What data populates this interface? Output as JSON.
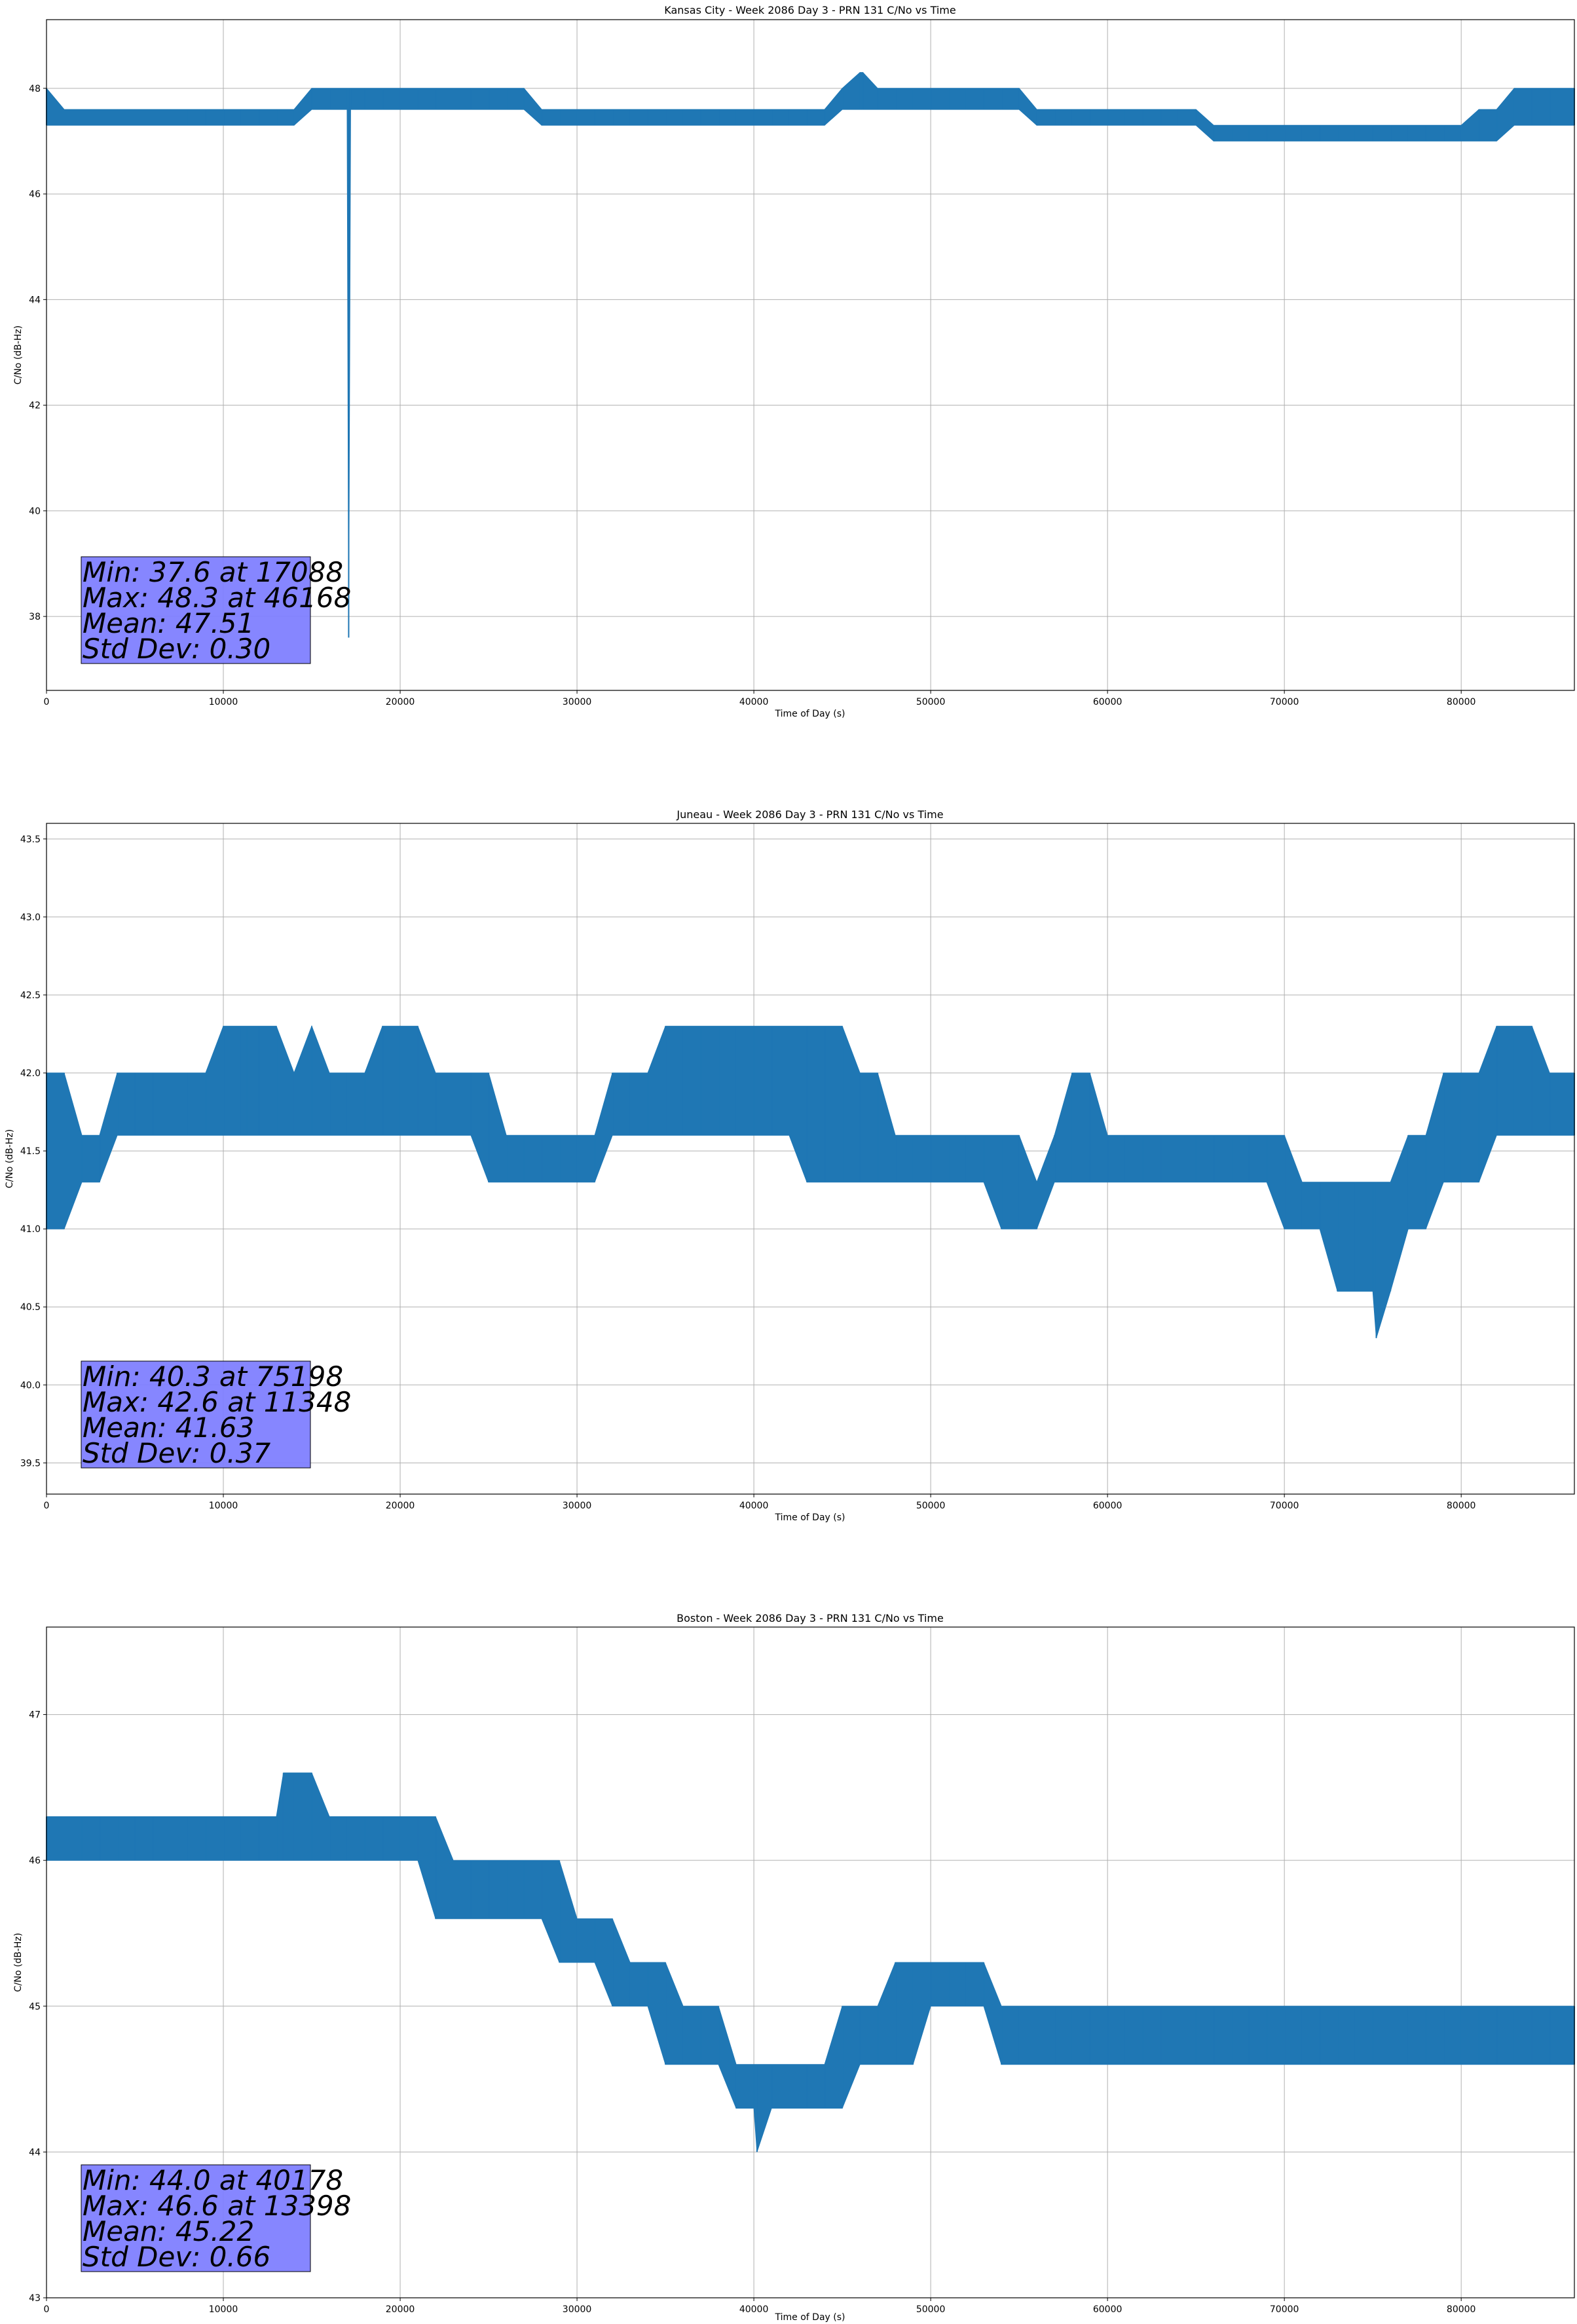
{
  "chart_data": [
    {
      "type": "line",
      "title": "Kansas City - Week 2086 Day 3 - PRN 131 C/No vs Time",
      "xlabel": "Time of Day (s)",
      "ylabel": "C/No (dB-Hz)",
      "xlim": [
        0,
        86400
      ],
      "ylim": [
        36.6,
        49.3
      ],
      "xticks": [
        0,
        10000,
        20000,
        30000,
        40000,
        50000,
        60000,
        70000,
        80000
      ],
      "xtick_labels": [
        "0",
        "10000",
        "20000",
        "30000",
        "40000",
        "50000",
        "60000",
        "70000",
        "80000"
      ],
      "yticks": [
        38,
        40,
        42,
        44,
        46,
        48
      ],
      "ytick_labels": [
        "38",
        "40",
        "42",
        "44",
        "46",
        "48"
      ],
      "grid": true,
      "line_color": "#1f77b4",
      "stats_box_color": "#8080ff",
      "stats": [
        "Min: 37.6 at 17088",
        "Max: 48.3 at 46168",
        "Mean: 47.51",
        "Std Dev: 0.30"
      ],
      "series": [
        {
          "x": [
            0,
            1000,
            2000,
            3000,
            4000,
            5000,
            6000,
            7000,
            8000,
            9000,
            10000,
            11000,
            12000,
            13000,
            14000,
            15000,
            16000,
            17000,
            17088,
            17200,
            18000,
            19000,
            20000,
            21000,
            22000,
            23000,
            24000,
            25000,
            26000,
            27000,
            28000,
            29000,
            30000,
            31000,
            32000,
            33000,
            34000,
            35000,
            36000,
            37000,
            38000,
            39000,
            40000,
            41000,
            42000,
            43000,
            44000,
            45000,
            46000,
            46168,
            47000,
            48000,
            49000,
            50000,
            51000,
            52000,
            53000,
            54000,
            55000,
            56000,
            57000,
            58000,
            59000,
            60000,
            61000,
            62000,
            63000,
            64000,
            65000,
            66000,
            67000,
            68000,
            69000,
            70000,
            71000,
            72000,
            73000,
            74000,
            75000,
            76000,
            77000,
            78000,
            79000,
            80000,
            81000,
            82000,
            83000,
            84000,
            85000,
            86400
          ],
          "low": [
            47.3,
            47.3,
            47.3,
            47.3,
            47.3,
            47.3,
            47.3,
            47.3,
            47.3,
            47.3,
            47.3,
            47.3,
            47.3,
            47.3,
            47.3,
            47.6,
            47.6,
            47.6,
            37.6,
            47.6,
            47.6,
            47.6,
            47.6,
            47.6,
            47.6,
            47.6,
            47.6,
            47.6,
            47.6,
            47.6,
            47.3,
            47.3,
            47.3,
            47.3,
            47.3,
            47.3,
            47.3,
            47.3,
            47.3,
            47.3,
            47.3,
            47.3,
            47.3,
            47.3,
            47.3,
            47.3,
            47.3,
            47.6,
            47.6,
            47.6,
            47.6,
            47.6,
            47.6,
            47.6,
            47.6,
            47.6,
            47.6,
            47.6,
            47.6,
            47.3,
            47.3,
            47.3,
            47.3,
            47.3,
            47.3,
            47.3,
            47.3,
            47.3,
            47.3,
            47.0,
            47.0,
            47.0,
            47.0,
            47.0,
            47.0,
            47.0,
            47.0,
            47.0,
            47.0,
            47.0,
            47.0,
            47.0,
            47.0,
            47.0,
            47.0,
            47.0,
            47.3,
            47.3,
            47.3,
            47.3
          ],
          "high": [
            48.0,
            47.6,
            47.6,
            47.6,
            47.6,
            47.6,
            47.6,
            47.6,
            47.6,
            47.6,
            47.6,
            47.6,
            47.6,
            47.6,
            47.6,
            48.0,
            48.0,
            48.0,
            48.0,
            48.0,
            48.0,
            48.0,
            48.0,
            48.0,
            48.0,
            48.0,
            48.0,
            48.0,
            48.0,
            48.0,
            47.6,
            47.6,
            47.6,
            47.6,
            47.6,
            47.6,
            47.6,
            47.6,
            47.6,
            47.6,
            47.6,
            47.6,
            47.6,
            47.6,
            47.6,
            47.6,
            47.6,
            48.0,
            48.3,
            48.3,
            48.0,
            48.0,
            48.0,
            48.0,
            48.0,
            48.0,
            48.0,
            48.0,
            48.0,
            47.6,
            47.6,
            47.6,
            47.6,
            47.6,
            47.6,
            47.6,
            47.6,
            47.6,
            47.6,
            47.3,
            47.3,
            47.3,
            47.3,
            47.3,
            47.3,
            47.3,
            47.3,
            47.3,
            47.3,
            47.3,
            47.3,
            47.3,
            47.3,
            47.3,
            47.6,
            47.6,
            48.0,
            48.0,
            48.0,
            48.0
          ]
        }
      ]
    },
    {
      "type": "line",
      "title": "Juneau - Week 2086 Day 3 - PRN 131 C/No vs Time",
      "xlabel": "Time of Day (s)",
      "ylabel": "C/No (dB-Hz)",
      "xlim": [
        0,
        86400
      ],
      "ylim": [
        39.3,
        43.6
      ],
      "xticks": [
        0,
        10000,
        20000,
        30000,
        40000,
        50000,
        60000,
        70000,
        80000
      ],
      "xtick_labels": [
        "0",
        "10000",
        "20000",
        "30000",
        "40000",
        "50000",
        "60000",
        "70000",
        "80000"
      ],
      "yticks": [
        39.5,
        40.0,
        40.5,
        41.0,
        41.5,
        42.0,
        42.5,
        43.0,
        43.5
      ],
      "ytick_labels": [
        "39.5",
        "40.0",
        "40.5",
        "41.0",
        "41.5",
        "42.0",
        "42.5",
        "43.0",
        "43.5"
      ],
      "grid": true,
      "line_color": "#1f77b4",
      "stats_box_color": "#8080ff",
      "stats": [
        "Min: 40.3 at 75198",
        "Max: 42.6 at 11348",
        "Mean: 41.63",
        "Std Dev: 0.37"
      ],
      "series": [
        {
          "x": [
            0,
            1000,
            2000,
            3000,
            4000,
            5000,
            6000,
            7000,
            8000,
            9000,
            10000,
            11000,
            11348,
            12000,
            13000,
            14000,
            15000,
            16000,
            17000,
            18000,
            19000,
            20000,
            21000,
            22000,
            23000,
            24000,
            25000,
            26000,
            27000,
            28000,
            29000,
            30000,
            31000,
            32000,
            33000,
            34000,
            35000,
            36000,
            37000,
            38000,
            39000,
            40000,
            41000,
            42000,
            43000,
            44000,
            45000,
            46000,
            47000,
            48000,
            49000,
            50000,
            51000,
            52000,
            53000,
            54000,
            55000,
            56000,
            57000,
            58000,
            59000,
            60000,
            61000,
            62000,
            63000,
            64000,
            65000,
            66000,
            67000,
            68000,
            69000,
            70000,
            71000,
            72000,
            73000,
            74000,
            75000,
            75198,
            76000,
            77000,
            78000,
            79000,
            80000,
            81000,
            82000,
            83000,
            84000,
            85000,
            86400
          ],
          "low": [
            41.0,
            41.0,
            41.3,
            41.3,
            41.6,
            41.6,
            41.6,
            41.6,
            41.6,
            41.6,
            41.6,
            41.6,
            41.6,
            41.6,
            41.6,
            41.6,
            41.6,
            41.6,
            41.6,
            41.6,
            41.6,
            41.6,
            41.6,
            41.6,
            41.6,
            41.6,
            41.3,
            41.3,
            41.3,
            41.3,
            41.3,
            41.3,
            41.3,
            41.6,
            41.6,
            41.6,
            41.6,
            41.6,
            41.6,
            41.6,
            41.6,
            41.6,
            41.6,
            41.6,
            41.3,
            41.3,
            41.3,
            41.3,
            41.3,
            41.3,
            41.3,
            41.3,
            41.3,
            41.3,
            41.3,
            41.0,
            41.0,
            41.0,
            41.3,
            41.3,
            41.3,
            41.3,
            41.3,
            41.3,
            41.3,
            41.3,
            41.3,
            41.3,
            41.3,
            41.3,
            41.3,
            41.0,
            41.0,
            41.0,
            40.6,
            40.6,
            40.6,
            40.3,
            40.6,
            41.0,
            41.0,
            41.3,
            41.3,
            41.3,
            41.6,
            41.6,
            41.6,
            41.6,
            41.6
          ],
          "high": [
            42.0,
            42.0,
            41.6,
            41.6,
            42.0,
            42.0,
            42.0,
            42.0,
            42.0,
            42.0,
            42.3,
            42.3,
            42.3,
            42.3,
            42.3,
            42.0,
            42.3,
            42.0,
            42.0,
            42.0,
            42.3,
            42.3,
            42.3,
            42.0,
            42.0,
            42.0,
            42.0,
            41.6,
            41.6,
            41.6,
            41.6,
            41.6,
            41.6,
            42.0,
            42.0,
            42.0,
            42.3,
            42.3,
            42.3,
            42.3,
            42.3,
            42.3,
            42.3,
            42.3,
            42.3,
            42.3,
            42.3,
            42.0,
            42.0,
            41.6,
            41.6,
            41.6,
            41.6,
            41.6,
            41.6,
            41.6,
            41.6,
            41.3,
            41.6,
            42.0,
            42.0,
            41.6,
            41.6,
            41.6,
            41.6,
            41.6,
            41.6,
            41.6,
            41.6,
            41.6,
            41.6,
            41.6,
            41.3,
            41.3,
            41.3,
            41.3,
            41.3,
            41.3,
            41.3,
            41.6,
            41.6,
            42.0,
            42.0,
            42.0,
            42.3,
            42.3,
            42.3,
            42.0,
            42.0
          ]
        }
      ]
    },
    {
      "type": "line",
      "title": "Boston - Week 2086 Day 3 - PRN 131 C/No vs Time",
      "xlabel": "Time of Day (s)",
      "ylabel": "C/No (dB-Hz)",
      "xlim": [
        0,
        86400
      ],
      "ylim": [
        43.0,
        47.6
      ],
      "xticks": [
        0,
        10000,
        20000,
        30000,
        40000,
        50000,
        60000,
        70000,
        80000
      ],
      "xtick_labels": [
        "0",
        "10000",
        "20000",
        "30000",
        "40000",
        "50000",
        "60000",
        "70000",
        "80000"
      ],
      "yticks": [
        43,
        44,
        45,
        46,
        47
      ],
      "ytick_labels": [
        "43",
        "44",
        "45",
        "46",
        "47"
      ],
      "grid": true,
      "line_color": "#1f77b4",
      "stats_box_color": "#8080ff",
      "stats": [
        "Min: 44.0 at 40178",
        "Max: 46.6 at 13398",
        "Mean: 45.22",
        "Std Dev: 0.66"
      ],
      "series": [
        {
          "x": [
            0,
            1000,
            2000,
            3000,
            4000,
            5000,
            6000,
            7000,
            8000,
            9000,
            10000,
            11000,
            12000,
            13000,
            13398,
            14000,
            15000,
            16000,
            17000,
            18000,
            19000,
            20000,
            21000,
            22000,
            23000,
            24000,
            25000,
            26000,
            27000,
            28000,
            29000,
            30000,
            31000,
            32000,
            33000,
            34000,
            35000,
            36000,
            37000,
            38000,
            39000,
            40000,
            40178,
            41000,
            42000,
            43000,
            44000,
            45000,
            46000,
            47000,
            48000,
            49000,
            50000,
            51000,
            52000,
            53000,
            54000,
            55000,
            56000,
            57000,
            58000,
            59000,
            60000,
            61000,
            62000,
            63000,
            64000,
            65000,
            66000,
            67000,
            68000,
            69000,
            70000,
            71000,
            72000,
            73000,
            74000,
            75000,
            76000,
            77000,
            78000,
            79000,
            80000,
            81000,
            82000,
            83000,
            84000,
            85000,
            86400
          ],
          "low": [
            46.0,
            46.0,
            46.0,
            46.0,
            46.0,
            46.0,
            46.0,
            46.0,
            46.0,
            46.0,
            46.0,
            46.0,
            46.0,
            46.0,
            46.0,
            46.0,
            46.0,
            46.0,
            46.0,
            46.0,
            46.0,
            46.0,
            46.0,
            45.6,
            45.6,
            45.6,
            45.6,
            45.6,
            45.6,
            45.6,
            45.3,
            45.3,
            45.3,
            45.0,
            45.0,
            45.0,
            44.6,
            44.6,
            44.6,
            44.6,
            44.3,
            44.3,
            44.0,
            44.3,
            44.3,
            44.3,
            44.3,
            44.3,
            44.6,
            44.6,
            44.6,
            44.6,
            45.0,
            45.0,
            45.0,
            45.0,
            44.6,
            44.6,
            44.6,
            44.6,
            44.6,
            44.6,
            44.6,
            44.6,
            44.6,
            44.6,
            44.6,
            44.6,
            44.6,
            44.6,
            44.6,
            44.6,
            44.6,
            44.6,
            44.6,
            44.6,
            44.6,
            44.6,
            44.6,
            44.6,
            44.6,
            44.6,
            44.6,
            44.6,
            44.6,
            44.6,
            44.6,
            44.6,
            44.6
          ],
          "high": [
            46.3,
            46.3,
            46.3,
            46.3,
            46.3,
            46.3,
            46.3,
            46.3,
            46.3,
            46.3,
            46.3,
            46.3,
            46.3,
            46.3,
            46.6,
            46.6,
            46.6,
            46.3,
            46.3,
            46.3,
            46.3,
            46.3,
            46.3,
            46.3,
            46.0,
            46.0,
            46.0,
            46.0,
            46.0,
            46.0,
            46.0,
            45.6,
            45.6,
            45.6,
            45.3,
            45.3,
            45.3,
            45.0,
            45.0,
            45.0,
            44.6,
            44.6,
            44.6,
            44.6,
            44.6,
            44.6,
            44.6,
            45.0,
            45.0,
            45.0,
            45.3,
            45.3,
            45.3,
            45.3,
            45.3,
            45.3,
            45.0,
            45.0,
            45.0,
            45.0,
            45.0,
            45.0,
            45.0,
            45.0,
            45.0,
            45.0,
            45.0,
            45.0,
            45.0,
            45.0,
            45.0,
            45.0,
            45.0,
            45.0,
            45.0,
            45.0,
            45.0,
            45.0,
            45.0,
            45.0,
            45.0,
            45.0,
            45.0,
            45.0,
            45.0,
            45.0,
            45.0,
            45.0,
            45.0
          ]
        }
      ]
    }
  ]
}
